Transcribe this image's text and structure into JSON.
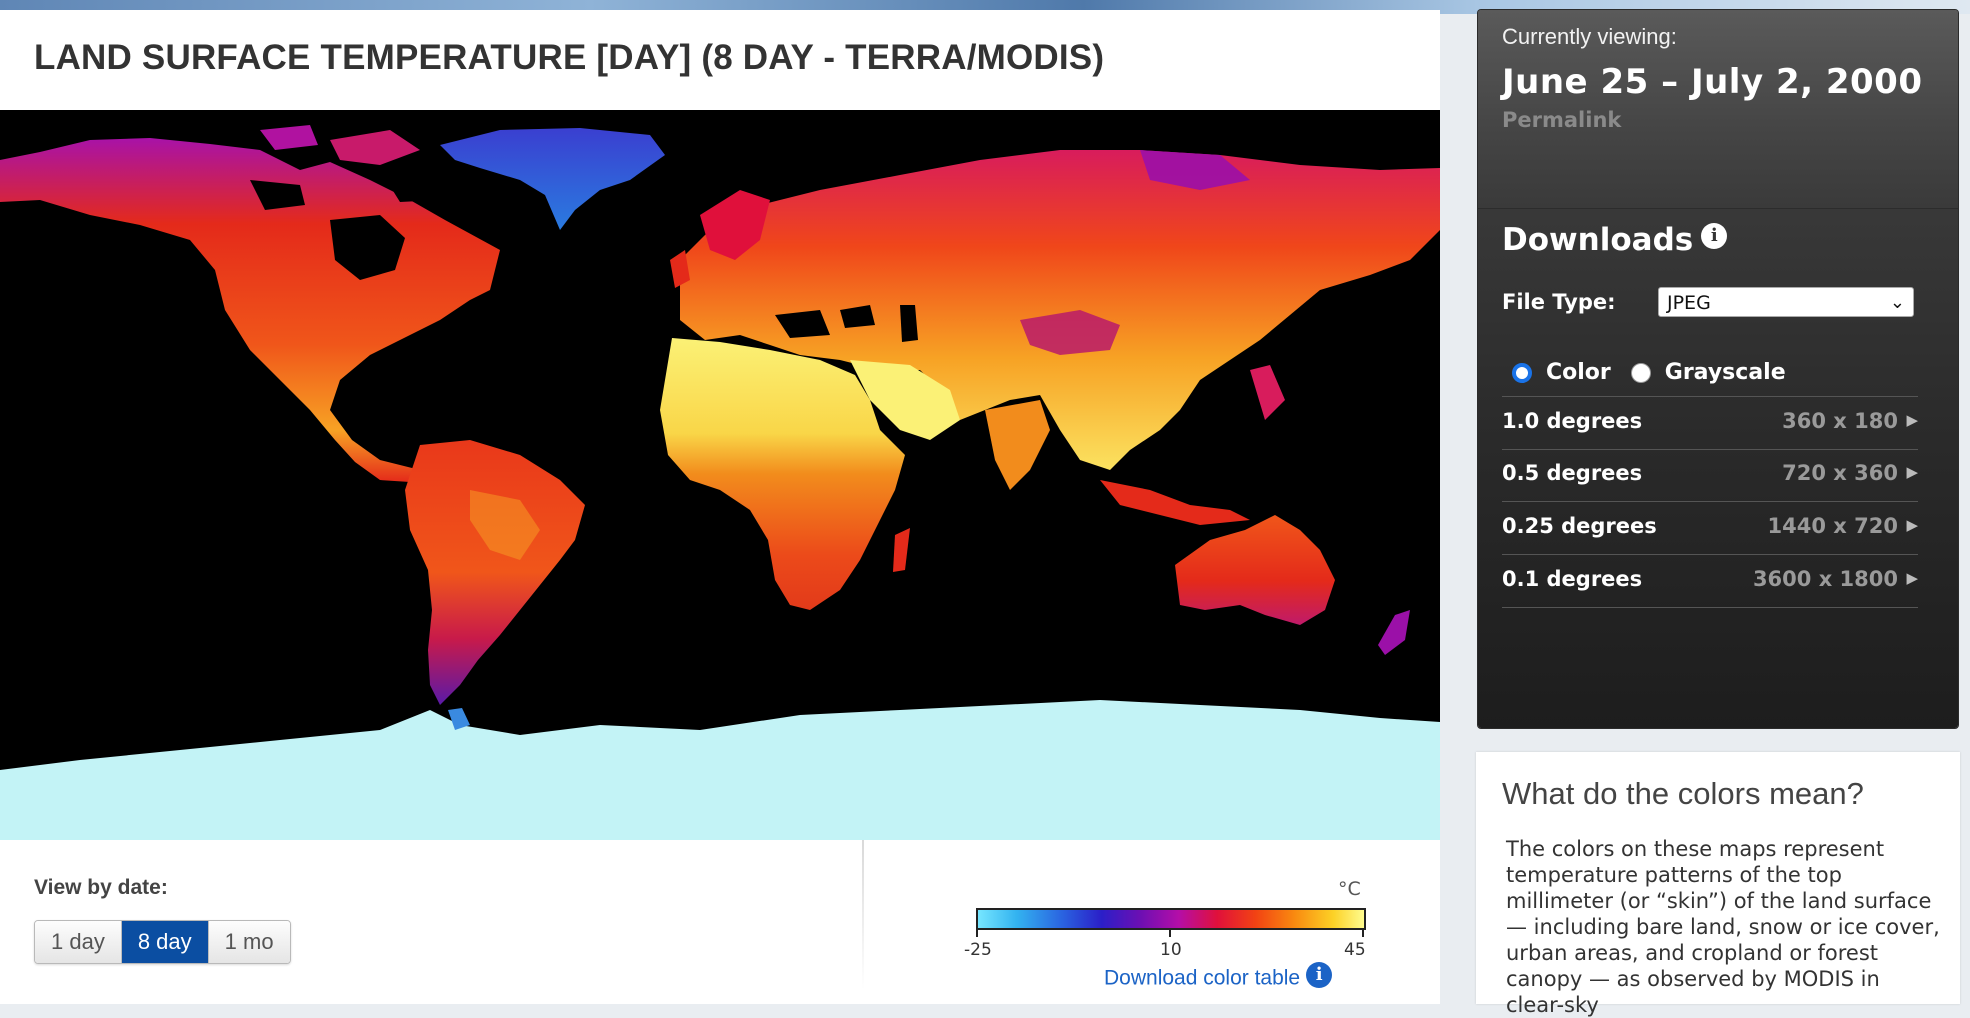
{
  "page_title": "LAND SURFACE TEMPERATURE [DAY] (8 DAY - TERRA/MODIS)",
  "map": {
    "image_label": "Land surface temperature map",
    "colors": {
      "ocean": "#000000",
      "ice": "#c3f3f6",
      "hot": "#fbf176",
      "warm": "#f28c1c",
      "mid": "#e42a1a",
      "cool": "#9b10a8",
      "cold": "#2d50d8"
    }
  },
  "view_by_date": {
    "label": "View by date:",
    "options": [
      "1 day",
      "8 day",
      "1 mo"
    ],
    "selected": "8 day"
  },
  "color_scale": {
    "unit": "°C",
    "tick_labels": [
      "-25",
      "10",
      "45"
    ],
    "min": -25,
    "max": 45,
    "download_label": "Download color table",
    "info_icon": "info-icon"
  },
  "sidebar": {
    "currently_viewing_label": "Currently viewing:",
    "date_range": "June 25 – July 2, 2000",
    "permalink_label": "Permalink",
    "downloads_title": "Downloads",
    "file_type_label": "File Type:",
    "file_type_value": "JPEG",
    "color_modes": [
      "Color",
      "Grayscale"
    ],
    "selected_color_mode": "Color",
    "resolutions": [
      {
        "name": "1.0 degrees",
        "size": "360 x 180"
      },
      {
        "name": "0.5 degrees",
        "size": "720 x 360"
      },
      {
        "name": "0.25 degrees",
        "size": "1440 x 720"
      },
      {
        "name": "0.1 degrees",
        "size": "3600 x 1800"
      }
    ]
  },
  "colors_card": {
    "title": "What do the colors mean?",
    "body": "The colors on these maps represent temperature patterns of the top millimeter (or “skin”) of the land surface — including bare land, snow or ice cover, urban areas, and cropland or forest canopy — as observed by MODIS in clear-sky"
  }
}
